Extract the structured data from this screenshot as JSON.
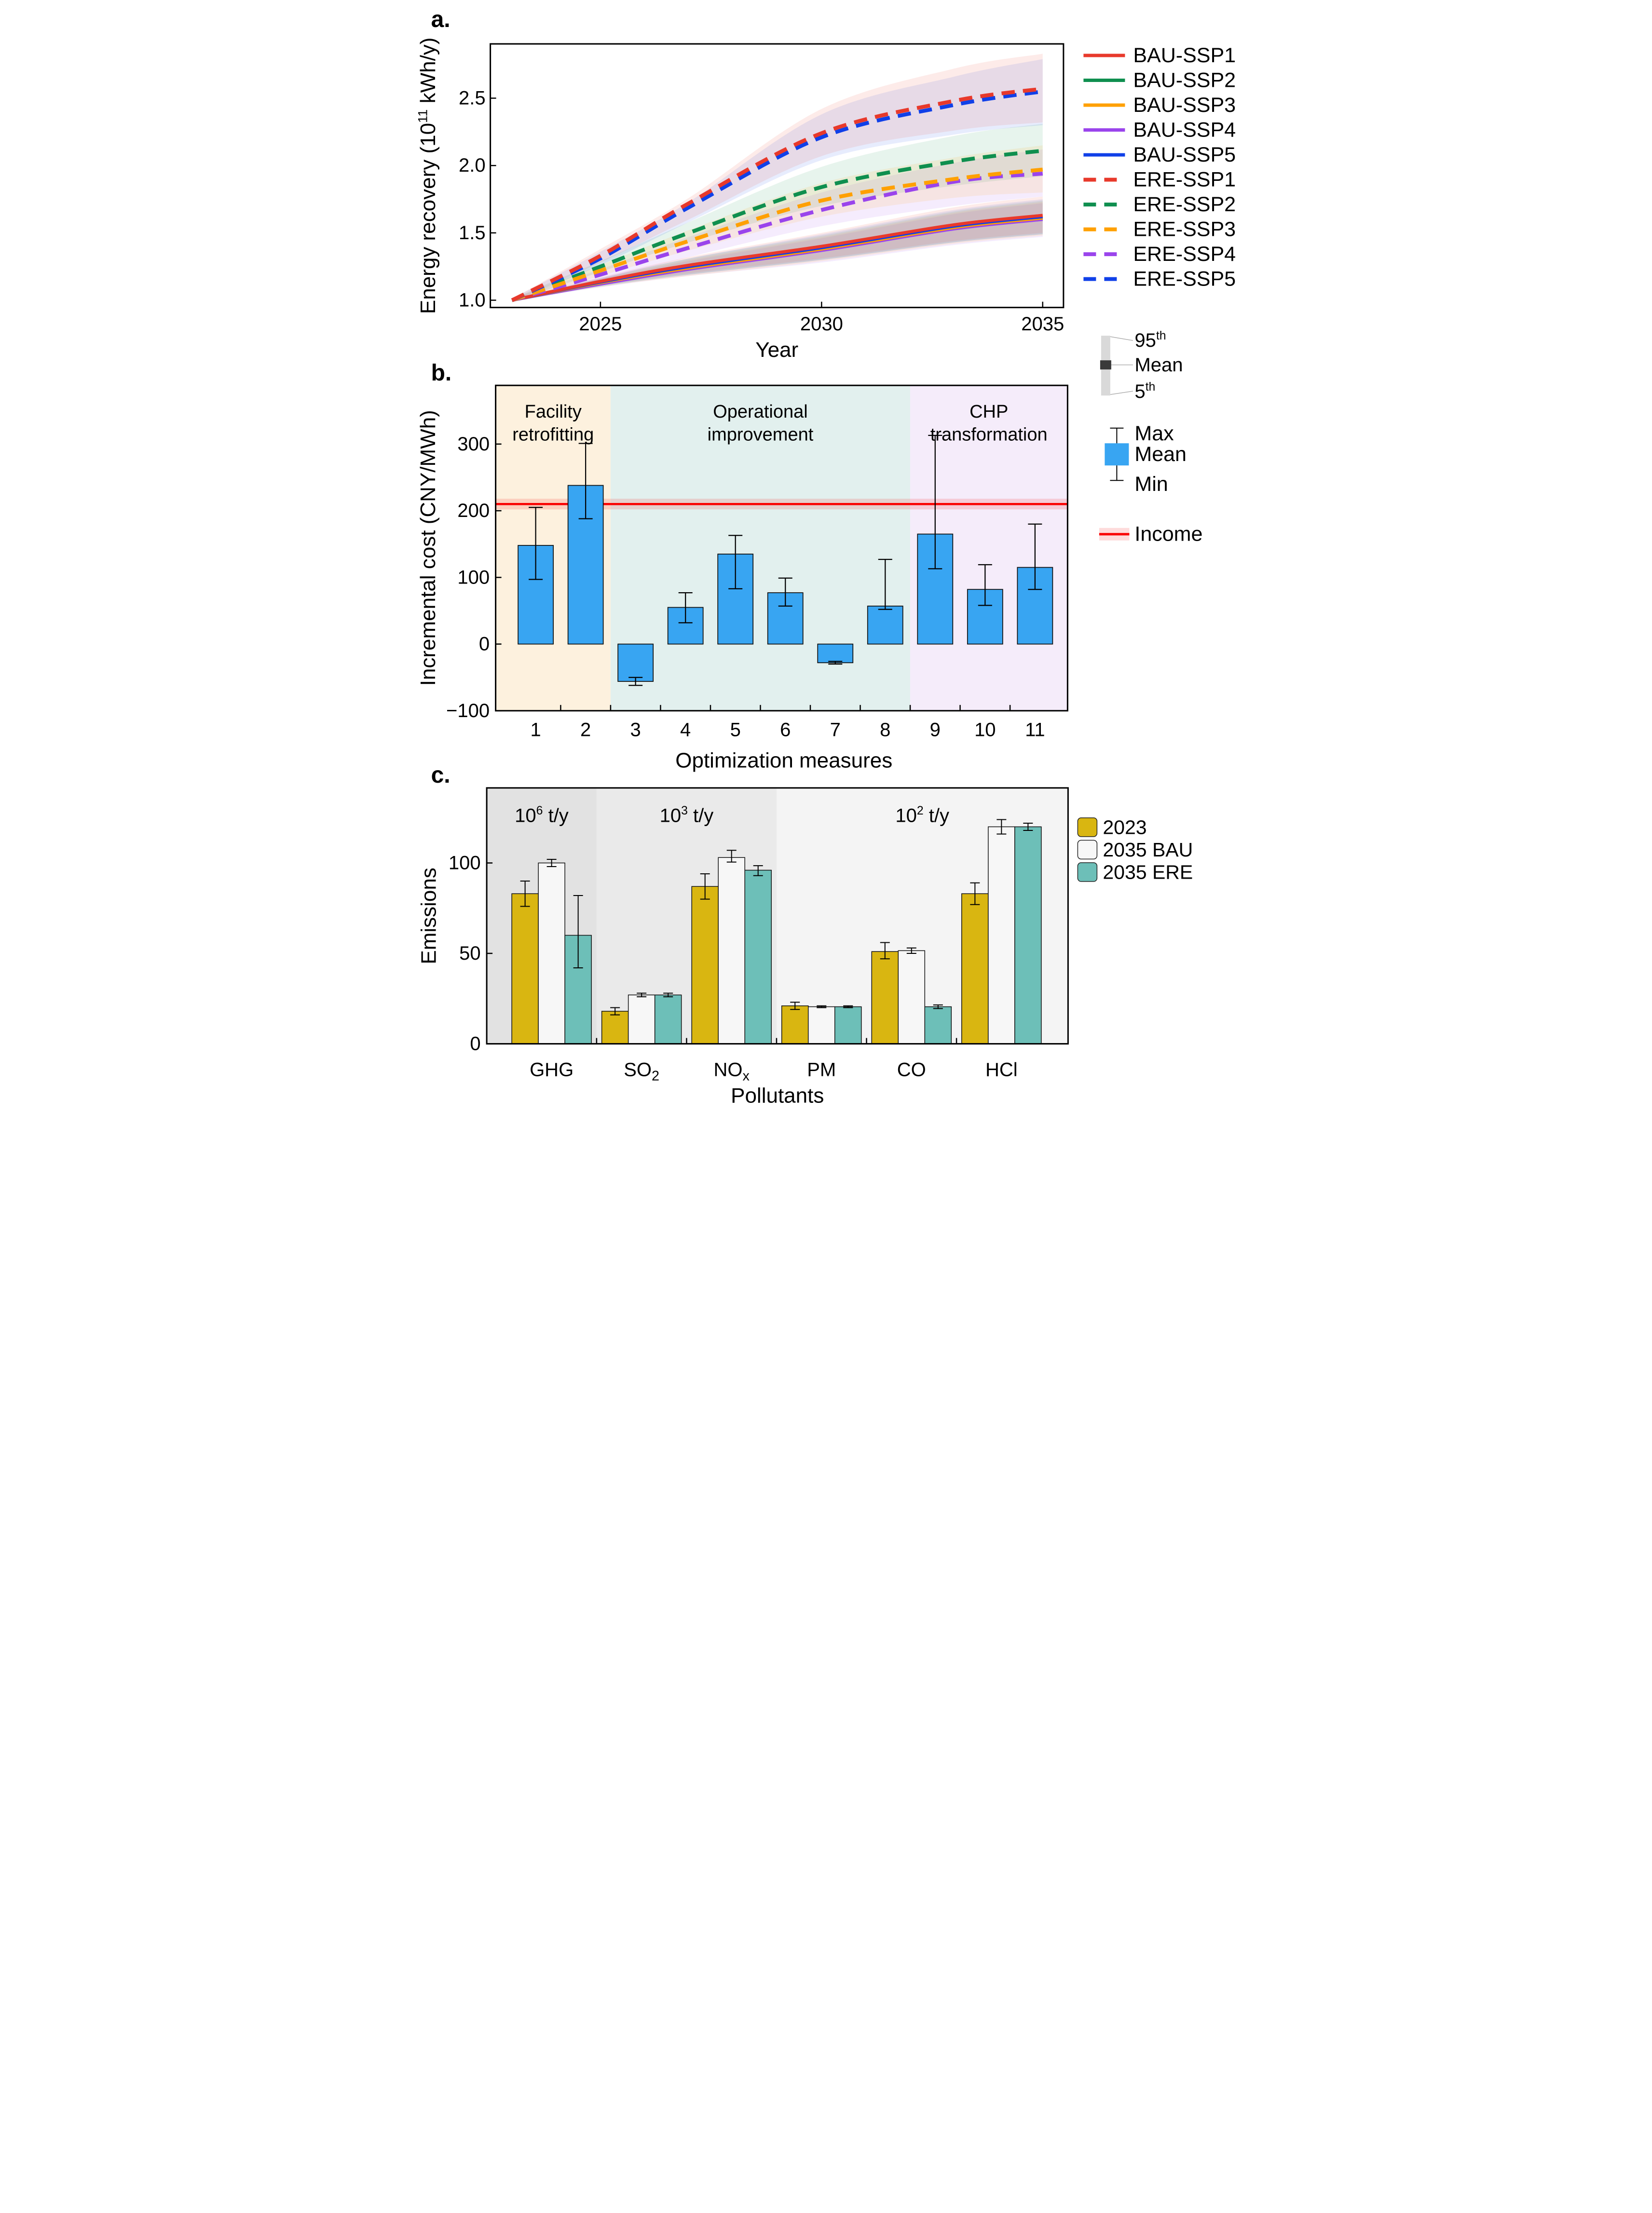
{
  "figure": {
    "panel_a_label": "a.",
    "panel_b_label": "b.",
    "panel_c_label": "c."
  },
  "chart_data": [
    {
      "type": "line",
      "panel": "a",
      "xlabel": "Year",
      "ylabel_parts": [
        {
          "t": "Energy recovery (10"
        },
        {
          "t": "11",
          "sup": true
        },
        {
          "t": " kWh/y)"
        }
      ],
      "xlim": [
        2022.51,
        2035.47
      ],
      "ylim": [
        0.946,
        2.903
      ],
      "xticks": [
        2025,
        2030,
        2035
      ],
      "yticks": [
        {
          "v": 1.0,
          "label": "1.0"
        },
        {
          "v": 1.5,
          "label": "1.5"
        },
        {
          "v": 2.0,
          "label": "2.0"
        },
        {
          "v": 2.5,
          "label": "2.5"
        }
      ],
      "x": [
        2023,
        2025,
        2027,
        2030,
        2033,
        2035
      ],
      "series": [
        {
          "name": "BAU-SSP1",
          "color": "#e8392b",
          "dashed": false,
          "values": [
            1.0,
            1.14,
            1.26,
            1.4,
            1.56,
            1.63
          ],
          "band_hi": [
            1.005,
            1.17,
            1.32,
            1.5,
            1.69,
            1.77
          ],
          "band_lo": [
            0.995,
            1.11,
            1.2,
            1.31,
            1.44,
            1.5
          ]
        },
        {
          "name": "BAU-SSP2",
          "color": "#0f8f4f",
          "dashed": false,
          "values": [
            1.0,
            1.13,
            1.245,
            1.385,
            1.545,
            1.615
          ],
          "band_hi": [
            1.005,
            1.16,
            1.31,
            1.48,
            1.66,
            1.74
          ],
          "band_lo": [
            0.995,
            1.1,
            1.19,
            1.3,
            1.43,
            1.49
          ]
        },
        {
          "name": "BAU-SSP3",
          "color": "#ffa000",
          "dashed": false,
          "values": [
            1.0,
            1.13,
            1.24,
            1.38,
            1.54,
            1.61
          ],
          "band_hi": [
            1.005,
            1.16,
            1.3,
            1.47,
            1.65,
            1.73
          ],
          "band_lo": [
            0.995,
            1.1,
            1.18,
            1.29,
            1.42,
            1.48
          ]
        },
        {
          "name": "BAU-SSP4",
          "color": "#9a44ec",
          "dashed": false,
          "values": [
            1.0,
            1.12,
            1.23,
            1.37,
            1.53,
            1.6
          ],
          "band_hi": [
            1.005,
            1.155,
            1.29,
            1.46,
            1.64,
            1.72
          ],
          "band_lo": [
            0.995,
            1.095,
            1.18,
            1.28,
            1.41,
            1.47
          ]
        },
        {
          "name": "BAU-SSP5",
          "color": "#1040e8",
          "dashed": false,
          "values": [
            1.0,
            1.135,
            1.25,
            1.39,
            1.55,
            1.62
          ],
          "band_hi": [
            1.005,
            1.165,
            1.31,
            1.49,
            1.67,
            1.75
          ],
          "band_lo": [
            0.995,
            1.105,
            1.19,
            1.3,
            1.43,
            1.49
          ]
        },
        {
          "name": "ERE-SSP1",
          "color": "#e8392b",
          "dashed": true,
          "values": [
            1.0,
            1.33,
            1.72,
            2.24,
            2.48,
            2.57
          ],
          "band_hi": [
            1.01,
            1.38,
            1.76,
            2.42,
            2.72,
            2.83
          ],
          "band_lo": [
            0.99,
            1.28,
            1.6,
            2.07,
            2.26,
            2.32
          ]
        },
        {
          "name": "ERE-SSP2",
          "color": "#0f8f4f",
          "dashed": true,
          "values": [
            1.0,
            1.25,
            1.5,
            1.84,
            2.03,
            2.11
          ],
          "band_hi": [
            1.01,
            1.29,
            1.58,
            1.99,
            2.22,
            2.31
          ],
          "band_lo": [
            0.99,
            1.21,
            1.43,
            1.7,
            1.85,
            1.92
          ]
        },
        {
          "name": "ERE-SSP3",
          "color": "#ffa000",
          "dashed": true,
          "values": [
            1.0,
            1.22,
            1.44,
            1.74,
            1.9,
            1.97
          ],
          "band_hi": [
            1.01,
            1.26,
            1.52,
            1.87,
            2.06,
            2.15
          ],
          "band_lo": [
            0.99,
            1.18,
            1.37,
            1.62,
            1.76,
            1.8
          ]
        },
        {
          "name": "ERE-SSP4",
          "color": "#9a44ec",
          "dashed": true,
          "values": [
            1.0,
            1.19,
            1.39,
            1.67,
            1.88,
            1.94
          ],
          "band_hi": [
            1.01,
            1.23,
            1.47,
            1.8,
            2.02,
            2.12
          ],
          "band_lo": [
            0.99,
            1.15,
            1.32,
            1.55,
            1.7,
            1.77
          ]
        },
        {
          "name": "ERE-SSP5",
          "color": "#1040e8",
          "dashed": true,
          "values": [
            1.0,
            1.31,
            1.69,
            2.21,
            2.45,
            2.55
          ],
          "band_hi": [
            1.01,
            1.36,
            1.73,
            2.38,
            2.66,
            2.79
          ],
          "band_lo": [
            0.99,
            1.26,
            1.58,
            2.04,
            2.23,
            2.3
          ]
        }
      ],
      "percentile_legend": {
        "top_parts": [
          {
            "t": "95"
          },
          {
            "t": "th",
            "sup": true
          }
        ],
        "mid_parts": [
          {
            "t": "Mean"
          }
        ],
        "bot_parts": [
          {
            "t": "5"
          },
          {
            "t": "th",
            "sup": true
          }
        ]
      }
    },
    {
      "type": "bar",
      "panel": "b",
      "xlabel": "Optimization measures",
      "ylabel": "Incremental cost (CNY/MWh)",
      "ylim": [
        -100,
        388
      ],
      "yticks": [
        -100,
        0,
        100,
        200,
        300
      ],
      "categories": [
        "1",
        "2",
        "3",
        "4",
        "5",
        "6",
        "7",
        "8",
        "9",
        "10",
        "11"
      ],
      "mean": [
        148,
        238,
        -56,
        55,
        135,
        77,
        -28,
        57,
        165,
        82,
        115
      ],
      "max": [
        205,
        301,
        -50,
        77,
        163,
        99,
        -26,
        127,
        313,
        119,
        180
      ],
      "min": [
        97,
        188,
        -62,
        32,
        83,
        57,
        -30,
        52,
        113,
        58,
        82
      ],
      "bar_color": "#38a5f2",
      "income": {
        "label": "Income",
        "value": 210,
        "band": [
          202,
          218
        ],
        "color": "#fa0000",
        "band_color": "rgba(250,0,0,0.14)"
      },
      "regions": [
        {
          "lines": [
            "Facility",
            "retrofitting"
          ],
          "span": [
            0,
            2
          ],
          "color": "#fdf1de"
        },
        {
          "lines": [
            "Operational",
            "improvement"
          ],
          "span": [
            2,
            8
          ],
          "color": "#e2f0ee"
        },
        {
          "lines": [
            "CHP",
            "transformation"
          ],
          "span": [
            8,
            11
          ],
          "color": "#f5ecfa"
        }
      ],
      "legend": {
        "max": "Max",
        "mean": "Mean",
        "min": "Min"
      }
    },
    {
      "type": "grouped-bar",
      "panel": "c",
      "xlabel": "Pollutants",
      "ylabel": "Emissions",
      "ylim": [
        0,
        141.5
      ],
      "yticks": [
        0,
        50,
        100
      ],
      "categories": [
        [
          {
            "t": "GHG"
          }
        ],
        [
          {
            "t": "SO"
          },
          {
            "t": "2",
            "sub": true
          }
        ],
        [
          {
            "t": "NO"
          },
          {
            "t": "x",
            "sub": true
          }
        ],
        [
          {
            "t": "PM"
          }
        ],
        [
          {
            "t": "CO"
          }
        ],
        [
          {
            "t": "HCl"
          }
        ]
      ],
      "series": [
        {
          "name": "2023",
          "color": "#d9b611",
          "values": [
            83,
            18,
            87,
            21,
            51,
            83
          ],
          "err_lo": [
            76,
            16,
            80,
            19,
            47,
            77
          ],
          "err_hi": [
            90,
            20,
            94,
            23,
            56,
            89
          ]
        },
        {
          "name": "2035 BAU",
          "color": "#f7f7f7",
          "values": [
            100,
            27,
            103,
            20.5,
            51.5,
            120
          ],
          "err_lo": [
            98,
            26,
            100.5,
            20,
            50,
            116
          ],
          "err_hi": [
            102,
            28,
            107,
            21,
            53,
            124
          ]
        },
        {
          "name": "2035 ERE",
          "color": "#6dbfb8",
          "values": [
            60,
            27,
            96,
            20.5,
            20.5,
            120
          ],
          "err_lo": [
            42,
            26,
            93,
            20,
            19.5,
            118
          ],
          "err_hi": [
            82,
            28,
            98.5,
            21,
            21.5,
            122
          ]
        }
      ],
      "regions": [
        {
          "parts": [
            {
              "t": "10"
            },
            {
              "t": "6",
              "sup": true
            },
            {
              "t": " t/y"
            }
          ],
          "span": [
            0,
            1
          ],
          "color": "#e2e2e2"
        },
        {
          "parts": [
            {
              "t": "10"
            },
            {
              "t": "3",
              "sup": true
            },
            {
              "t": " t/y"
            }
          ],
          "span": [
            1,
            3
          ],
          "color": "#eaeaea"
        },
        {
          "parts": [
            {
              "t": "10"
            },
            {
              "t": "2",
              "sup": true
            },
            {
              "t": " t/y"
            }
          ],
          "span": [
            3,
            6
          ],
          "color": "#f4f4f4"
        }
      ]
    }
  ]
}
